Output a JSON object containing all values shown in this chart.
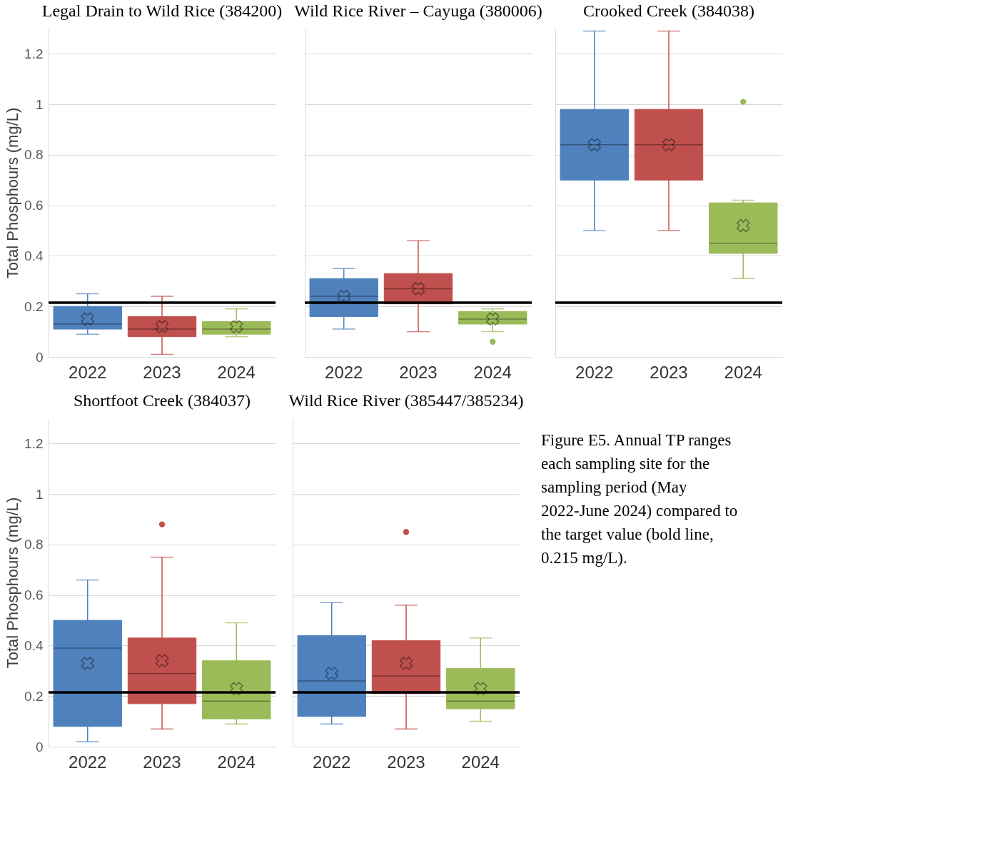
{
  "chart_data": [
    {
      "type": "box",
      "title": "Legal Drain to Wild Rice (384200)",
      "ylabel": "Total Phosphours (mg/L)",
      "categories": [
        "2022",
        "2023",
        "2024"
      ],
      "colors": [
        "#4f81bd",
        "#c0504d",
        "#9bbb59"
      ],
      "ylim": [
        0,
        1.3
      ],
      "yticks": [
        0,
        0.2,
        0.4,
        0.6,
        0.8,
        1,
        1.2
      ],
      "grid": "y",
      "boxes": [
        {
          "low": 0.09,
          "q1": 0.11,
          "median": 0.13,
          "q3": 0.2,
          "high": 0.25,
          "mean": 0.15
        },
        {
          "low": 0.01,
          "q1": 0.08,
          "median": 0.11,
          "q3": 0.16,
          "high": 0.24,
          "mean": 0.12
        },
        {
          "low": 0.08,
          "q1": 0.09,
          "median": 0.11,
          "q3": 0.14,
          "high": 0.19,
          "mean": 0.12
        }
      ],
      "ref_lines": [
        {
          "axis": "y",
          "value": 0.215,
          "color": "#000000"
        }
      ]
    },
    {
      "type": "box",
      "title": "Wild Rice River – Cayuga (380006)",
      "categories": [
        "2022",
        "2023",
        "2024"
      ],
      "colors": [
        "#4f81bd",
        "#c0504d",
        "#9bbb59"
      ],
      "ylim": [
        0,
        1.3
      ],
      "yticks": [
        0,
        0.2,
        0.4,
        0.6,
        0.8,
        1,
        1.2
      ],
      "grid": "y",
      "tick_labels": "x",
      "boxes": [
        {
          "low": 0.11,
          "q1": 0.16,
          "median": 0.24,
          "q3": 0.31,
          "high": 0.35,
          "mean": 0.24
        },
        {
          "low": 0.1,
          "q1": 0.21,
          "median": 0.27,
          "q3": 0.33,
          "high": 0.46,
          "mean": 0.27
        },
        {
          "low": 0.1,
          "q1": 0.13,
          "median": 0.15,
          "q3": 0.18,
          "high": 0.19,
          "mean": 0.15,
          "outliers": [
            0.06
          ]
        }
      ],
      "ref_lines": [
        {
          "axis": "y",
          "value": 0.215,
          "color": "#000000"
        }
      ]
    },
    {
      "type": "box",
      "title": "Crooked Creek (384038)",
      "categories": [
        "2022",
        "2023",
        "2024"
      ],
      "colors": [
        "#4f81bd",
        "#c0504d",
        "#9bbb59"
      ],
      "ylim": [
        0,
        1.3
      ],
      "yticks": [
        0,
        0.2,
        0.4,
        0.6,
        0.8,
        1,
        1.2
      ],
      "grid": "y",
      "tick_labels": "x",
      "boxes": [
        {
          "low": 0.5,
          "q1": 0.7,
          "median": 0.84,
          "q3": 0.98,
          "high": 1.29,
          "mean": 0.84
        },
        {
          "low": 0.5,
          "q1": 0.7,
          "median": 0.84,
          "q3": 0.98,
          "high": 1.29,
          "mean": 0.84
        },
        {
          "low": 0.31,
          "q1": 0.41,
          "median": 0.45,
          "q3": 0.61,
          "high": 0.62,
          "mean": 0.52,
          "outliers": [
            1.01
          ]
        }
      ],
      "ref_lines": [
        {
          "axis": "y",
          "value": 0.215,
          "color": "#000000"
        }
      ]
    },
    {
      "type": "box",
      "title": "Shortfoot Creek (384037)",
      "ylabel": "Total Phosphours (mg/L)",
      "categories": [
        "2022",
        "2023",
        "2024"
      ],
      "colors": [
        "#4f81bd",
        "#c0504d",
        "#9bbb59"
      ],
      "ylim": [
        0,
        1.3
      ],
      "yticks": [
        0,
        0.2,
        0.4,
        0.6,
        0.8,
        1,
        1.2
      ],
      "grid": "y",
      "boxes": [
        {
          "low": 0.02,
          "q1": 0.08,
          "median": 0.39,
          "q3": 0.5,
          "high": 0.66,
          "mean": 0.33
        },
        {
          "low": 0.07,
          "q1": 0.17,
          "median": 0.29,
          "q3": 0.43,
          "high": 0.75,
          "mean": 0.34,
          "outliers": [
            0.88
          ]
        },
        {
          "low": 0.09,
          "q1": 0.11,
          "median": 0.18,
          "q3": 0.34,
          "high": 0.49,
          "mean": 0.23
        }
      ],
      "ref_lines": [
        {
          "axis": "y",
          "value": 0.215,
          "color": "#000000"
        }
      ]
    },
    {
      "type": "box",
      "title": "Wild Rice River (385447/385234)",
      "categories": [
        "2022",
        "2023",
        "2024"
      ],
      "colors": [
        "#4f81bd",
        "#c0504d",
        "#9bbb59"
      ],
      "ylim": [
        0,
        1.3
      ],
      "yticks": [
        0,
        0.2,
        0.4,
        0.6,
        0.8,
        1,
        1.2
      ],
      "grid": "y",
      "tick_labels": "x",
      "boxes": [
        {
          "low": 0.09,
          "q1": 0.12,
          "median": 0.26,
          "q3": 0.44,
          "high": 0.57,
          "mean": 0.29
        },
        {
          "low": 0.07,
          "q1": 0.21,
          "median": 0.28,
          "q3": 0.42,
          "high": 0.56,
          "mean": 0.33,
          "outliers": [
            0.85
          ]
        },
        {
          "low": 0.1,
          "q1": 0.15,
          "median": 0.18,
          "q3": 0.31,
          "high": 0.43,
          "mean": 0.23
        }
      ],
      "ref_lines": [
        {
          "axis": "y",
          "value": 0.215,
          "color": "#000000"
        }
      ]
    },
    {
      "type": "other",
      "annotations": [
        "Figure E5. Annual TP ranges each sampling site for the sampling period (May 2022-June 2024) compared to the target value (bold line, 0.215 mg/L)."
      ]
    }
  ]
}
